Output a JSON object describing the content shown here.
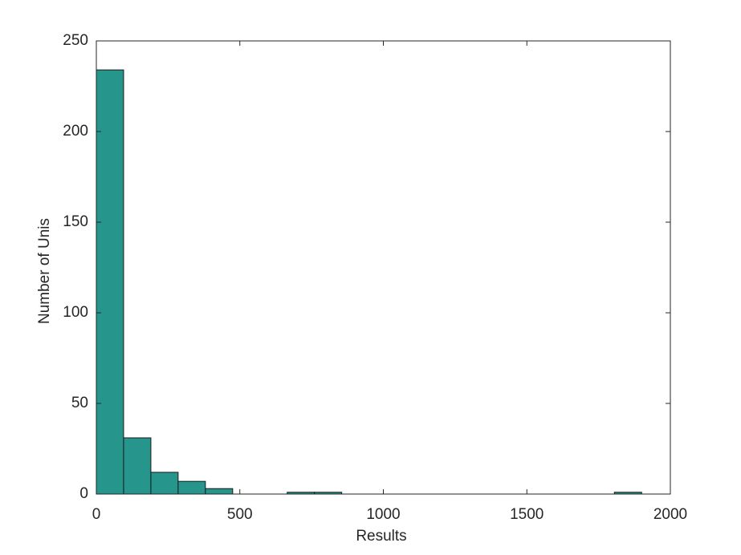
{
  "chart_data": {
    "type": "histogram",
    "xlabel": "Results",
    "ylabel": "Number of Unis",
    "color": "#26958c",
    "bins": [
      0,
      95,
      190,
      285,
      380,
      475,
      570,
      665,
      760,
      855,
      950,
      1045,
      1140,
      1235,
      1330,
      1425,
      1520,
      1615,
      1710,
      1805,
      1900
    ],
    "values": [
      234,
      31,
      12,
      7,
      3,
      0,
      0,
      1,
      1,
      0,
      0,
      0,
      0,
      0,
      0,
      0,
      0,
      0,
      0,
      1
    ],
    "xlim": [
      0,
      2000
    ],
    "xticks": [
      0,
      500,
      1000,
      1500,
      2000
    ],
    "ylim": [
      0,
      250
    ],
    "yticks": [
      0,
      50,
      100,
      150,
      200,
      250
    ]
  }
}
